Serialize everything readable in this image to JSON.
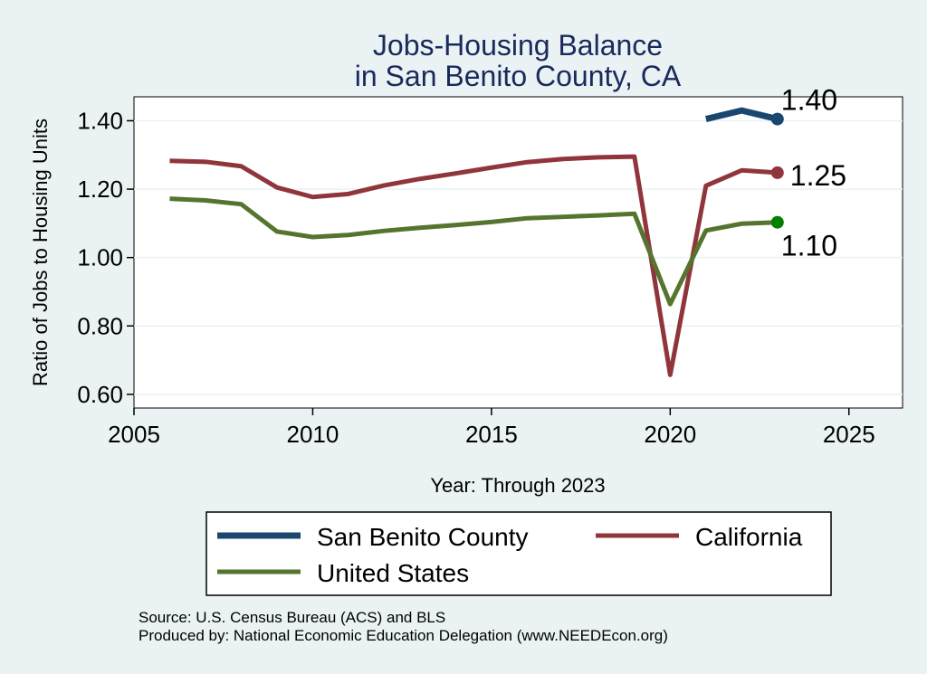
{
  "chart_data": {
    "type": "line",
    "title_lines": [
      "Jobs-Housing Balance",
      "in San Benito County, CA"
    ],
    "xlabel": "Year: Through 2023",
    "ylabel": "Ratio of Jobs to Housing Units",
    "xlim": [
      2005,
      2026.5
    ],
    "ylim": [
      0.56,
      1.47
    ],
    "x_ticks": [
      2005,
      2010,
      2015,
      2020,
      2025
    ],
    "y_ticks": [
      0.6,
      0.8,
      1.0,
      1.2,
      1.4
    ],
    "y_tick_labels": [
      "0.60",
      "0.80",
      "1.00",
      "1.20",
      "1.40"
    ],
    "grid": "horizontal",
    "series": [
      {
        "name": "San Benito County",
        "color": "#1a476f",
        "x": [
          2021,
          2022,
          2023
        ],
        "y": [
          1.405,
          1.43,
          1.405
        ],
        "end_label": "1.40"
      },
      {
        "name": "California",
        "color": "#90353b",
        "x": [
          2006,
          2007,
          2008,
          2009,
          2010,
          2011,
          2012,
          2013,
          2014,
          2015,
          2016,
          2017,
          2018,
          2019,
          2020,
          2021,
          2022,
          2023
        ],
        "y": [
          1.283,
          1.28,
          1.267,
          1.205,
          1.177,
          1.186,
          1.211,
          1.23,
          1.246,
          1.263,
          1.279,
          1.288,
          1.293,
          1.295,
          0.657,
          1.21,
          1.255,
          1.248
        ],
        "end_label": "1.25"
      },
      {
        "name": "United States",
        "color": "#55752f",
        "x": [
          2006,
          2007,
          2008,
          2009,
          2010,
          2011,
          2012,
          2013,
          2014,
          2015,
          2016,
          2017,
          2018,
          2019,
          2020,
          2021,
          2022,
          2023
        ],
        "y": [
          1.172,
          1.167,
          1.156,
          1.076,
          1.06,
          1.066,
          1.078,
          1.087,
          1.095,
          1.104,
          1.115,
          1.119,
          1.123,
          1.128,
          0.864,
          1.079,
          1.099,
          1.103
        ],
        "end_label": "1.10"
      }
    ],
    "end_marker_colors": [
      "#1a476f",
      "#90353b",
      "#008000"
    ],
    "legend": {
      "placement": "bottom",
      "entries": [
        "San Benito County",
        "California",
        "United States"
      ]
    },
    "notes": [
      "Source: U.S. Census Bureau (ACS) and BLS",
      "Produced by: National Economic Education Delegation (www.NEEDEcon.org)"
    ]
  }
}
